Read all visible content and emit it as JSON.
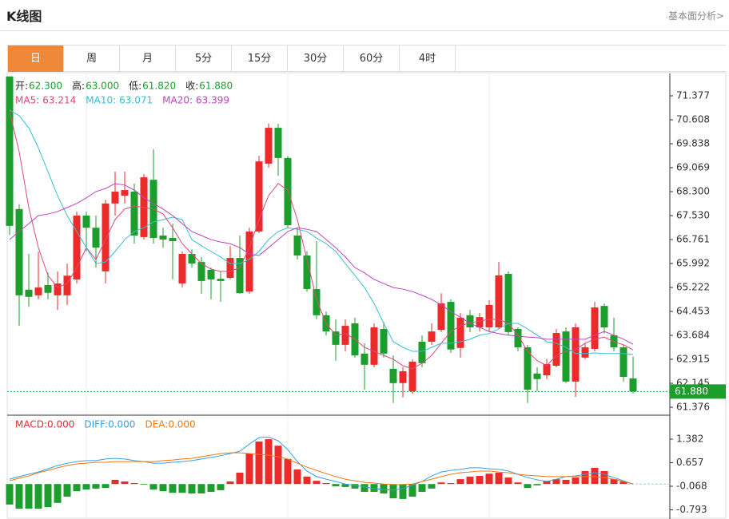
{
  "header": {
    "title": "K线图",
    "link": "基本面分析>"
  },
  "tabs": [
    "日",
    "周",
    "月",
    "5分",
    "15分",
    "30分",
    "60分",
    "4时"
  ],
  "active_tab": 0,
  "chart_data": [
    {
      "type": "candlestick",
      "info": [
        {
          "label": "开:",
          "value": "62.300"
        },
        {
          "label": "高:",
          "value": "63.000"
        },
        {
          "label": "低:",
          "value": "61.820"
        },
        {
          "label": "收:",
          "value": "61.880"
        }
      ],
      "up_color": "#ec2a2a",
      "down_color": "#1c9e2c",
      "open": [
        72.0,
        67.74,
        65.15,
        64.97,
        65.3,
        64.97,
        64.97,
        65.48,
        67.53,
        67.14,
        65.74,
        67.92,
        68.17,
        68.3,
        66.84,
        68.68,
        66.89,
        66.81,
        65.35,
        66.3,
        66.04,
        65.79,
        65.5,
        65.53,
        66.17,
        65.09,
        67.02,
        69.2,
        70.35,
        69.38,
        66.89,
        66.25,
        65.17,
        64.33,
        63.81,
        63.38,
        64.07,
        63.1,
        62.74,
        63.89,
        62.61,
        62.15,
        61.89,
        63.48,
        63.48,
        63.86,
        64.76,
        63.28,
        64.33,
        63.94,
        63.94,
        63.94,
        65.66,
        63.89,
        63.3,
        62.46,
        62.4,
        62.71,
        63.81,
        62.2,
        62.97,
        63.25,
        64.63,
        63.69,
        63.3,
        62.3
      ],
      "high": [
        72.0,
        67.9,
        66.3,
        66.37,
        65.7,
        65.74,
        65.99,
        67.66,
        67.66,
        67.53,
        68.04,
        68.94,
        68.94,
        68.56,
        68.86,
        69.66,
        67.14,
        67.27,
        66.38,
        66.45,
        66.2,
        65.86,
        65.74,
        66.55,
        66.89,
        67.14,
        69.45,
        70.48,
        70.48,
        69.45,
        67.14,
        66.38,
        66.71,
        64.45,
        64.2,
        64.2,
        64.25,
        63.43,
        64.07,
        64.12,
        63.04,
        62.66,
        62.92,
        63.68,
        64.07,
        65.04,
        64.84,
        64.4,
        64.5,
        64.4,
        64.81,
        66.04,
        65.74,
        63.94,
        63.38,
        62.66,
        62.92,
        63.89,
        63.94,
        64.07,
        63.43,
        64.76,
        64.71,
        64.25,
        63.38,
        63.0
      ],
      "low": [
        66.9,
        63.99,
        64.6,
        64.84,
        64.84,
        64.5,
        64.66,
        65.35,
        66.38,
        65.86,
        65.35,
        67.53,
        67.92,
        66.63,
        66.76,
        66.63,
        66.5,
        65.48,
        65.22,
        65.86,
        65.02,
        64.84,
        64.76,
        65.48,
        65.02,
        65.02,
        66.97,
        69.07,
        68.81,
        67.14,
        66.12,
        65.09,
        64.2,
        63.68,
        62.87,
        63.17,
        62.97,
        61.94,
        62.66,
        62.97,
        61.51,
        61.69,
        61.81,
        62.66,
        63.38,
        63.79,
        63.12,
        62.97,
        63.79,
        63.81,
        63.79,
        63.89,
        63.68,
        63.17,
        61.51,
        61.89,
        62.28,
        62.66,
        62.15,
        61.71,
        62.92,
        63.17,
        63.74,
        63.17,
        62.2,
        61.82
      ],
      "close": [
        67.2,
        64.97,
        64.92,
        65.22,
        65.05,
        65.35,
        65.6,
        67.53,
        67.14,
        66.5,
        67.92,
        68.3,
        68.35,
        66.89,
        68.76,
        66.81,
        66.76,
        66.71,
        66.3,
        65.99,
        65.43,
        65.48,
        65.43,
        66.17,
        65.04,
        67.02,
        69.27,
        70.35,
        69.38,
        67.22,
        66.25,
        65.17,
        64.33,
        63.81,
        63.38,
        63.99,
        63.04,
        62.74,
        63.94,
        63.1,
        62.15,
        62.53,
        62.84,
        62.79,
        63.81,
        64.71,
        63.23,
        64.25,
        63.94,
        64.27,
        64.66,
        65.61,
        63.79,
        63.3,
        61.94,
        62.28,
        62.76,
        63.76,
        62.2,
        63.94,
        63.3,
        64.58,
        63.94,
        63.3,
        62.35,
        61.88
      ],
      "series": [
        {
          "name": "MA5:",
          "value_label": "63.214",
          "color": "#e2467c",
          "values": [
            70.87,
            69.58,
            67.79,
            66.5,
            65.61,
            65.22,
            65.35,
            65.86,
            66.5,
            66.12,
            66.76,
            67.4,
            67.74,
            67.84,
            67.79,
            67.74,
            67.58,
            67.14,
            66.63,
            66.3,
            65.99,
            65.81,
            65.74,
            65.74,
            65.86,
            66.5,
            67.4,
            68.17,
            68.56,
            68.35,
            67.4,
            66.12,
            64.84,
            64.07,
            63.69,
            63.74,
            63.56,
            63.3,
            63.17,
            63.04,
            62.92,
            62.71,
            62.61,
            62.79,
            63.04,
            63.43,
            63.81,
            63.99,
            64.09,
            64.14,
            64.2,
            64.2,
            64.07,
            63.69,
            63.17,
            62.87,
            62.71,
            63.04,
            63.17,
            63.22,
            63.43,
            63.56,
            63.63,
            63.48,
            63.38,
            63.214
          ]
        },
        {
          "name": "MA10:",
          "value_label": "63.071",
          "color": "#33c0d6",
          "values": [
            70.92,
            70.74,
            70.35,
            69.71,
            68.94,
            68.17,
            67.53,
            67.02,
            66.5,
            65.99,
            66.04,
            66.38,
            66.76,
            67.02,
            67.14,
            67.33,
            67.4,
            67.48,
            67.4,
            66.76,
            66.56,
            66.38,
            66.2,
            65.99,
            65.99,
            66.12,
            66.38,
            66.76,
            67.02,
            67.14,
            67.09,
            67.02,
            66.81,
            66.63,
            66.38,
            65.99,
            65.61,
            65.22,
            64.71,
            64.07,
            63.48,
            63.3,
            63.17,
            63.17,
            63.3,
            63.43,
            63.43,
            63.48,
            63.56,
            63.69,
            63.74,
            63.89,
            64.07,
            64.07,
            63.89,
            63.69,
            63.48,
            63.43,
            63.3,
            63.1,
            63.1,
            63.12,
            63.1,
            63.1,
            63.1,
            63.071
          ]
        },
        {
          "name": "MA20:",
          "value_label": "63.399",
          "color": "#c043c0",
          "values": [
            66.76,
            67.02,
            67.27,
            67.53,
            67.58,
            67.66,
            67.79,
            67.92,
            68.1,
            68.3,
            68.4,
            68.56,
            68.51,
            68.35,
            68.1,
            67.92,
            67.74,
            67.53,
            67.27,
            67.02,
            66.89,
            66.76,
            66.68,
            66.63,
            66.5,
            66.3,
            66.25,
            66.5,
            66.76,
            67.02,
            67.14,
            67.09,
            67.02,
            66.76,
            66.5,
            66.2,
            65.86,
            65.69,
            65.48,
            65.35,
            65.22,
            65.17,
            65.09,
            64.97,
            64.84,
            64.66,
            64.45,
            64.27,
            64.07,
            63.94,
            63.81,
            63.74,
            63.69,
            63.66,
            63.63,
            63.61,
            63.56,
            63.56,
            63.56,
            63.56,
            63.56,
            63.69,
            63.81,
            63.69,
            63.56,
            63.399
          ]
        }
      ],
      "ylim": [
        61.12,
        72.095
      ],
      "yticks": [
        71.377,
        70.608,
        69.838,
        69.069,
        {
          "value": 68.3,
          "label": "68.300"
        },
        {
          "value": 67.53,
          "label": "67.530"
        },
        66.761,
        65.992,
        65.222,
        64.453,
        63.684,
        62.915,
        62.145,
        61.376
      ]
    },
    {
      "type": "macd",
      "histogram": {
        "name": "MACD:",
        "value_label": "0.000",
        "color": "#e0302f",
        "up_color": "#ec2a2a",
        "down_color": "#1c9e2c",
        "values": [
          -0.63,
          -0.76,
          -0.76,
          -0.76,
          -0.71,
          -0.58,
          -0.39,
          -0.22,
          -0.17,
          -0.14,
          -0.12,
          0.13,
          0.08,
          0.03,
          -0.02,
          -0.17,
          -0.22,
          -0.27,
          -0.27,
          -0.29,
          -0.29,
          -0.24,
          -0.19,
          0.08,
          0.35,
          0.94,
          1.31,
          1.38,
          1.18,
          0.77,
          0.45,
          0.23,
          0.1,
          0.03,
          -0.07,
          -0.09,
          -0.14,
          -0.24,
          -0.24,
          -0.29,
          -0.44,
          -0.46,
          -0.39,
          -0.24,
          -0.14,
          0.05,
          0.03,
          0.15,
          0.23,
          0.25,
          0.32,
          0.35,
          0.2,
          0.05,
          -0.12,
          -0.04,
          0.1,
          0.15,
          0.13,
          0.2,
          0.4,
          0.5,
          0.4,
          0.15,
          0.08,
          0
        ]
      },
      "series": [
        {
          "name": "DIFF:",
          "value_label": "0.000",
          "color": "#3aa0e0",
          "values": [
            0.15,
            0.23,
            0.3,
            0.37,
            0.47,
            0.57,
            0.64,
            0.69,
            0.72,
            0.72,
            0.77,
            0.79,
            0.77,
            0.72,
            0.69,
            0.64,
            0.64,
            0.67,
            0.69,
            0.72,
            0.77,
            0.82,
            0.87,
            0.94,
            1.01,
            1.23,
            1.43,
            1.45,
            1.33,
            1.06,
            0.69,
            0.4,
            0.23,
            0.15,
            0.08,
            0,
            -0.04,
            -0.09,
            -0.14,
            -0.17,
            -0.19,
            -0.14,
            -0.04,
            0.08,
            0.25,
            0.37,
            0.42,
            0.45,
            0.5,
            0.5,
            0.47,
            0.45,
            0.4,
            0.3,
            0.2,
            0.13,
            0.08,
            0.15,
            0.23,
            0.25,
            0.3,
            0.35,
            0.3,
            0.2,
            0.1,
            0
          ]
        },
        {
          "name": "DEA:",
          "value_label": "0.000",
          "color": "#f07a14",
          "values": [
            0.1,
            0.18,
            0.25,
            0.35,
            0.42,
            0.5,
            0.57,
            0.62,
            0.64,
            0.67,
            0.67,
            0.69,
            0.69,
            0.69,
            0.69,
            0.69,
            0.72,
            0.74,
            0.77,
            0.79,
            0.84,
            0.89,
            0.94,
            0.96,
            0.96,
            0.94,
            0.91,
            0.89,
            0.84,
            0.77,
            0.64,
            0.52,
            0.42,
            0.32,
            0.23,
            0.15,
            0.1,
            0.05,
            0.03,
            0,
            -0.02,
            -0.02,
            0,
            0.08,
            0.15,
            0.23,
            0.3,
            0.35,
            0.37,
            0.4,
            0.4,
            0.37,
            0.35,
            0.3,
            0.27,
            0.25,
            0.23,
            0.23,
            0.23,
            0.23,
            0.23,
            0.23,
            0.2,
            0.15,
            0.08,
            0
          ]
        }
      ],
      "ylim": [
        -1.076,
        2.119
      ],
      "yticks": [
        1.382,
        0.657,
        -0.068,
        -0.793
      ]
    }
  ]
}
